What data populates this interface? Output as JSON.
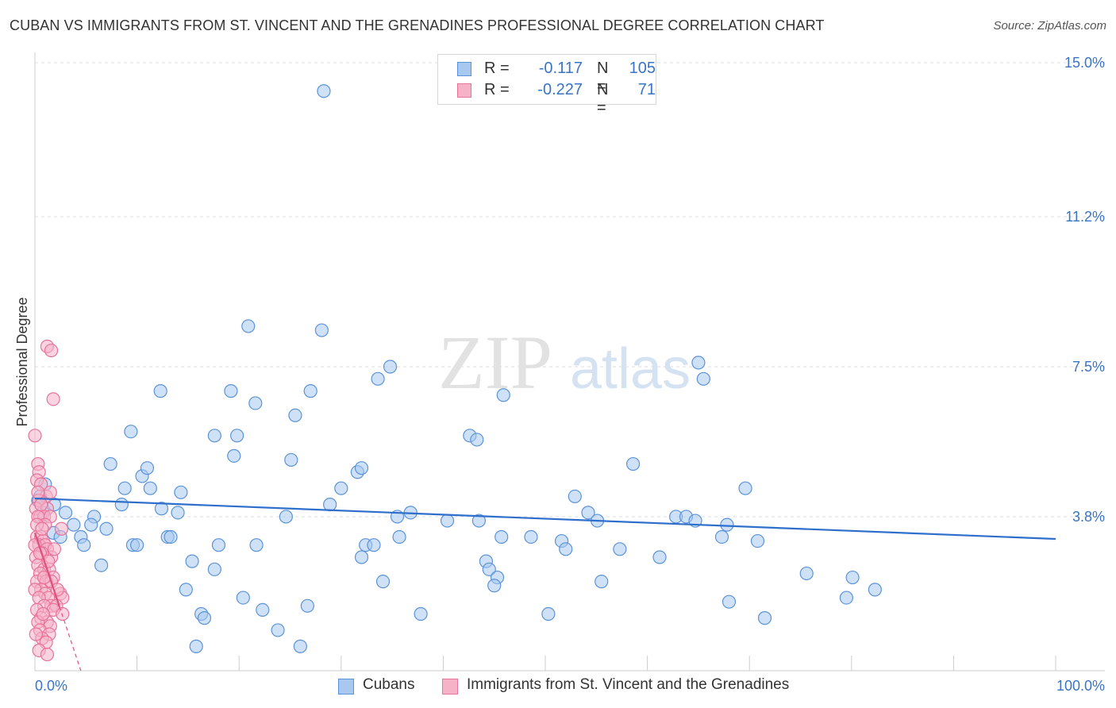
{
  "title": "CUBAN VS IMMIGRANTS FROM ST. VINCENT AND THE GRENADINES PROFESSIONAL DEGREE CORRELATION CHART",
  "source": "Source: ZipAtlas.com",
  "watermark": {
    "zip": "ZIP",
    "atlas": "atlas"
  },
  "legend": {
    "cubans": {
      "r_label": "R =",
      "r_value": "-0.117",
      "n_label": "N =",
      "n_value": "105"
    },
    "svg": {
      "r_label": "R =",
      "r_value": "-0.227",
      "n_label": "N =",
      "n_value": "71"
    }
  },
  "bottom_legend": {
    "cubans": "Cubans",
    "svg": "Immigrants from St. Vincent and the Grenadines"
  },
  "colors": {
    "blue_fill": "#a8c8f0",
    "blue_stroke": "#5b93d8",
    "blue_line": "#2f6fcc",
    "pink_fill": "#f6b3c8",
    "pink_stroke": "#e8729a",
    "pink_line": "#e0507e",
    "tick_label": "#3a74c4",
    "grid": "#dddddd"
  },
  "chart_data": {
    "type": "scatter",
    "title": "CUBAN VS IMMIGRANTS FROM ST. VINCENT AND THE GRENADINES PROFESSIONAL DEGREE CORRELATION CHART",
    "xlabel": "",
    "ylabel": "Professional Degree",
    "xlim": [
      0,
      100
    ],
    "ylim": [
      0,
      15.5
    ],
    "x_tick_labels": [
      "0.0%",
      "100.0%"
    ],
    "y_ticks": [
      {
        "value": 3.8,
        "label": "3.8%"
      },
      {
        "value": 7.5,
        "label": "7.5%"
      },
      {
        "value": 11.2,
        "label": "11.2%"
      },
      {
        "value": 15.0,
        "label": "15.0%"
      }
    ],
    "series": [
      {
        "name": "Cubans",
        "points": [
          [
            28.3,
            14.3
          ],
          [
            20.9,
            8.5
          ],
          [
            28.1,
            8.4
          ],
          [
            34.8,
            7.5
          ],
          [
            65.0,
            7.6
          ],
          [
            65.5,
            7.2
          ],
          [
            33.6,
            7.2
          ],
          [
            12.3,
            6.9
          ],
          [
            19.2,
            6.9
          ],
          [
            21.6,
            6.6
          ],
          [
            27.0,
            6.9
          ],
          [
            25.5,
            6.3
          ],
          [
            45.9,
            6.8
          ],
          [
            9.4,
            5.9
          ],
          [
            17.6,
            5.8
          ],
          [
            19.8,
            5.8
          ],
          [
            42.6,
            5.8
          ],
          [
            43.3,
            5.7
          ],
          [
            19.5,
            5.3
          ],
          [
            25.1,
            5.2
          ],
          [
            7.4,
            5.1
          ],
          [
            10.5,
            4.8
          ],
          [
            11.0,
            5.0
          ],
          [
            31.6,
            4.9
          ],
          [
            32.0,
            5.0
          ],
          [
            58.6,
            5.1
          ],
          [
            1.0,
            4.6
          ],
          [
            8.8,
            4.5
          ],
          [
            11.3,
            4.5
          ],
          [
            14.3,
            4.4
          ],
          [
            30.0,
            4.5
          ],
          [
            69.6,
            4.5
          ],
          [
            0.5,
            4.3
          ],
          [
            1.9,
            4.1
          ],
          [
            8.5,
            4.1
          ],
          [
            12.4,
            4.0
          ],
          [
            28.9,
            4.1
          ],
          [
            52.9,
            4.3
          ],
          [
            3.0,
            3.9
          ],
          [
            5.8,
            3.8
          ],
          [
            14.0,
            3.9
          ],
          [
            24.6,
            3.8
          ],
          [
            35.5,
            3.8
          ],
          [
            36.8,
            3.9
          ],
          [
            40.4,
            3.7
          ],
          [
            43.5,
            3.7
          ],
          [
            54.2,
            3.9
          ],
          [
            55.1,
            3.7
          ],
          [
            62.8,
            3.8
          ],
          [
            63.8,
            3.8
          ],
          [
            64.7,
            3.7
          ],
          [
            67.8,
            3.6
          ],
          [
            3.8,
            3.6
          ],
          [
            5.5,
            3.6
          ],
          [
            7.0,
            3.5
          ],
          [
            1.8,
            3.4
          ],
          [
            2.5,
            3.3
          ],
          [
            4.5,
            3.3
          ],
          [
            4.8,
            3.1
          ],
          [
            9.6,
            3.1
          ],
          [
            10.0,
            3.1
          ],
          [
            13.0,
            3.3
          ],
          [
            13.3,
            3.3
          ],
          [
            18.0,
            3.1
          ],
          [
            21.7,
            3.1
          ],
          [
            32.4,
            3.1
          ],
          [
            33.2,
            3.1
          ],
          [
            35.7,
            3.3
          ],
          [
            45.7,
            3.3
          ],
          [
            48.6,
            3.3
          ],
          [
            51.6,
            3.2
          ],
          [
            52.0,
            3.0
          ],
          [
            57.3,
            3.0
          ],
          [
            67.3,
            3.3
          ],
          [
            70.8,
            3.2
          ],
          [
            15.4,
            2.7
          ],
          [
            17.6,
            2.5
          ],
          [
            32.0,
            2.8
          ],
          [
            44.2,
            2.7
          ],
          [
            61.2,
            2.8
          ],
          [
            44.5,
            2.5
          ],
          [
            45.3,
            2.3
          ],
          [
            45.0,
            2.1
          ],
          [
            34.1,
            2.2
          ],
          [
            55.5,
            2.2
          ],
          [
            75.6,
            2.4
          ],
          [
            80.1,
            2.3
          ],
          [
            6.5,
            2.6
          ],
          [
            14.8,
            2.0
          ],
          [
            20.4,
            1.8
          ],
          [
            79.5,
            1.8
          ],
          [
            82.3,
            2.0
          ],
          [
            68.0,
            1.7
          ],
          [
            16.3,
            1.4
          ],
          [
            16.6,
            1.3
          ],
          [
            22.3,
            1.5
          ],
          [
            26.7,
            1.6
          ],
          [
            37.8,
            1.4
          ],
          [
            50.3,
            1.4
          ],
          [
            71.5,
            1.3
          ],
          [
            23.8,
            1.0
          ],
          [
            15.8,
            0.6
          ],
          [
            26.0,
            0.6
          ],
          [
            0.3,
            4.2
          ],
          [
            0.8,
            3.9
          ]
        ],
        "trend": {
          "x": [
            0,
            100
          ],
          "y": [
            4.25,
            3.25
          ]
        }
      },
      {
        "name": "Immigrants from St. Vincent and the Grenadines",
        "points": [
          [
            1.2,
            8.0
          ],
          [
            1.6,
            7.9
          ],
          [
            1.8,
            6.7
          ],
          [
            0.0,
            5.8
          ],
          [
            0.3,
            5.1
          ],
          [
            0.4,
            4.9
          ],
          [
            0.2,
            4.7
          ],
          [
            0.6,
            4.6
          ],
          [
            1.1,
            4.3
          ],
          [
            1.5,
            4.4
          ],
          [
            0.4,
            4.2
          ],
          [
            0.1,
            4.0
          ],
          [
            1.2,
            4.0
          ],
          [
            0.5,
            3.8
          ],
          [
            0.9,
            3.8
          ],
          [
            0.3,
            3.8
          ],
          [
            1.5,
            3.8
          ],
          [
            2.6,
            3.5
          ],
          [
            0.2,
            3.3
          ],
          [
            0.6,
            3.3
          ],
          [
            0.8,
            3.2
          ],
          [
            0.4,
            3.1
          ],
          [
            1.0,
            3.1
          ],
          [
            0.0,
            3.1
          ],
          [
            1.2,
            3.0
          ],
          [
            1.6,
            2.8
          ],
          [
            1.9,
            3.0
          ],
          [
            0.7,
            2.9
          ],
          [
            0.1,
            2.8
          ],
          [
            0.3,
            2.6
          ],
          [
            0.9,
            2.5
          ],
          [
            1.4,
            2.5
          ],
          [
            0.5,
            2.4
          ],
          [
            1.8,
            2.3
          ],
          [
            0.2,
            2.2
          ],
          [
            1.1,
            2.2
          ],
          [
            1.6,
            2.2
          ],
          [
            0.6,
            2.0
          ],
          [
            0.0,
            2.0
          ],
          [
            1.0,
            1.9
          ],
          [
            1.3,
            1.8
          ],
          [
            0.4,
            1.8
          ],
          [
            2.5,
            1.9
          ],
          [
            2.7,
            1.8
          ],
          [
            1.6,
            1.6
          ],
          [
            0.9,
            1.6
          ],
          [
            2.1,
            1.6
          ],
          [
            0.2,
            1.5
          ],
          [
            1.8,
            1.5
          ],
          [
            2.7,
            1.4
          ],
          [
            0.6,
            1.3
          ],
          [
            1.2,
            1.2
          ],
          [
            0.3,
            1.2
          ],
          [
            1.5,
            1.1
          ],
          [
            0.5,
            1.0
          ],
          [
            1.4,
            0.9
          ],
          [
            0.7,
            0.8
          ],
          [
            0.1,
            0.9
          ],
          [
            1.1,
            0.7
          ],
          [
            0.4,
            0.5
          ],
          [
            1.2,
            0.4
          ],
          [
            0.8,
            1.4
          ],
          [
            0.3,
            4.4
          ],
          [
            0.6,
            4.1
          ],
          [
            1.0,
            3.6
          ],
          [
            0.2,
            3.6
          ],
          [
            0.7,
            3.5
          ],
          [
            0.5,
            2.9
          ],
          [
            1.3,
            2.7
          ],
          [
            0.9,
            2.3
          ],
          [
            2.2,
            2.0
          ]
        ],
        "trend": {
          "x": [
            0,
            4.5
          ],
          "y": [
            3.4,
            0.0
          ]
        }
      }
    ]
  }
}
